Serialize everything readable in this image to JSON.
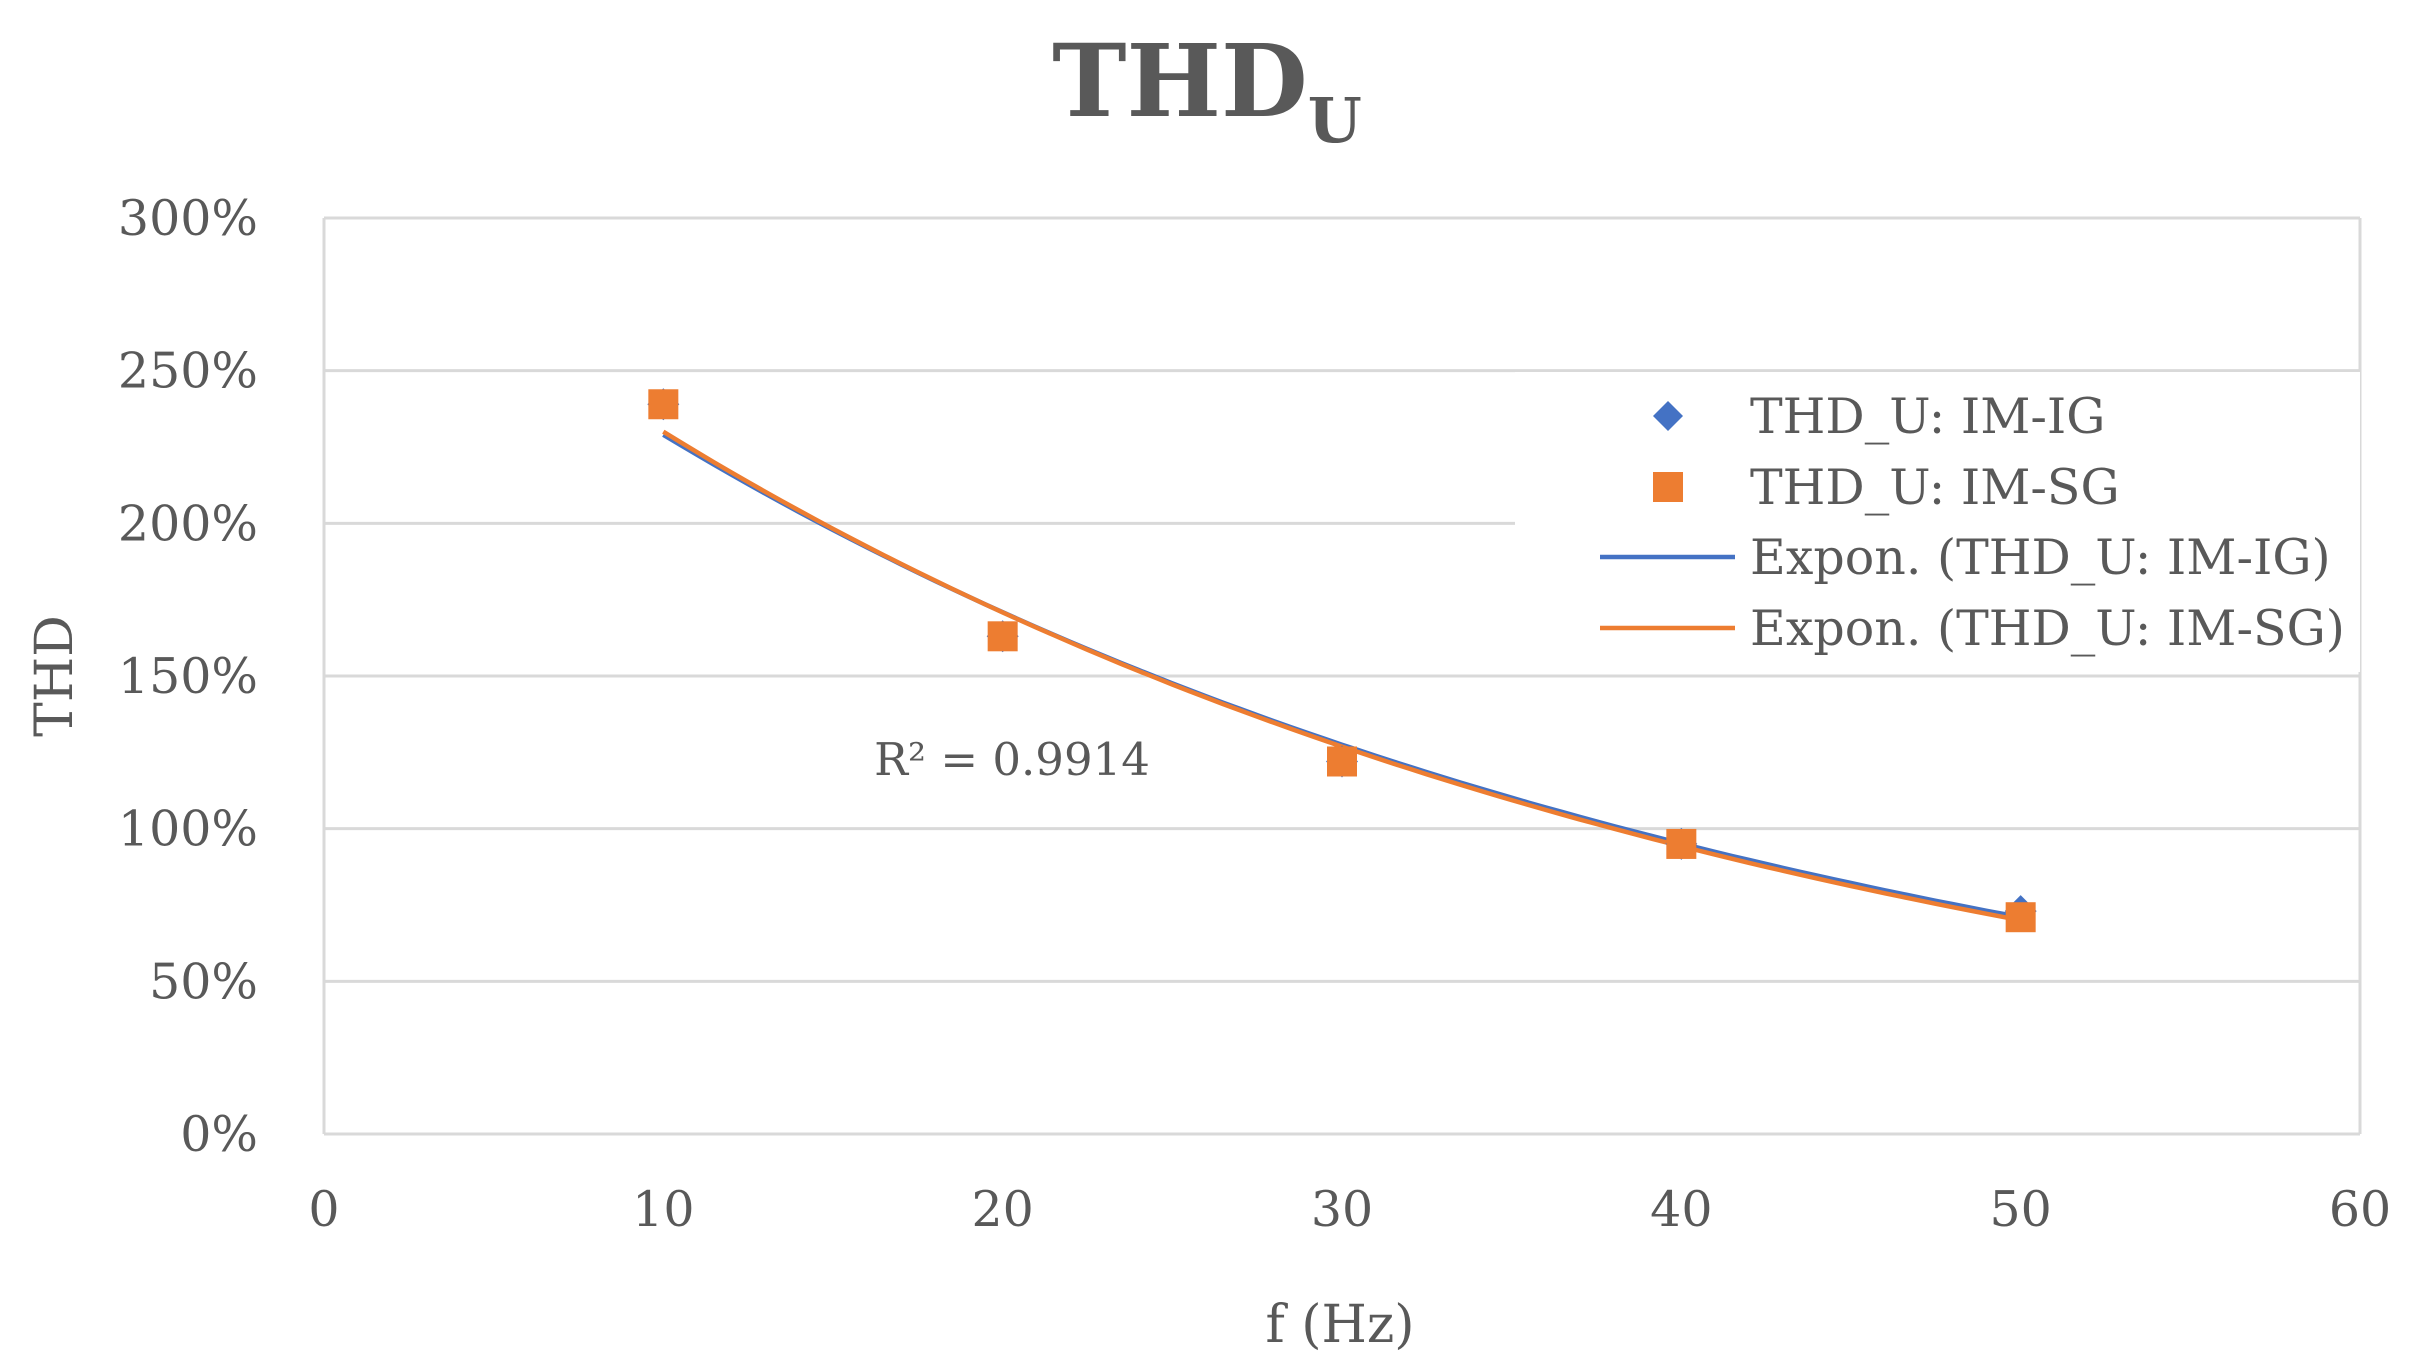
{
  "chart_data": {
    "type": "scatter",
    "title": "THD",
    "title_subscript": "U",
    "xlabel": "f (Hz)",
    "ylabel": "THD",
    "xlim": [
      0,
      60
    ],
    "ylim": [
      0,
      3
    ],
    "x_ticks": [
      0,
      10,
      20,
      30,
      40,
      50,
      60
    ],
    "x_tick_labels": [
      "0",
      "10",
      "20",
      "30",
      "40",
      "50",
      "60"
    ],
    "y_ticks": [
      0,
      0.5,
      1.0,
      1.5,
      2.0,
      2.5,
      3.0
    ],
    "y_tick_labels": [
      "0%",
      "50%",
      "100%",
      "150%",
      "200%",
      "250%",
      "300%"
    ],
    "grid": "horizontal",
    "legend_position": "right",
    "series": [
      {
        "name": "THD_U: IM-IG",
        "marker": "diamond",
        "color": "#4472C4",
        "x": [
          10,
          20,
          30,
          40,
          50
        ],
        "y": [
          2.39,
          1.63,
          1.22,
          0.95,
          0.73
        ]
      },
      {
        "name": "THD_U: IM-SG",
        "marker": "square",
        "color": "#ED7D31",
        "x": [
          10,
          20,
          30,
          40,
          50
        ],
        "y": [
          2.39,
          1.63,
          1.22,
          0.95,
          0.71
        ]
      }
    ],
    "trendlines": [
      {
        "name": "Expon. (THD_U: IM-IG)",
        "type": "exponential",
        "color": "#4472C4",
        "x_range": [
          10,
          50
        ],
        "y_start": 2.29,
        "y_end": 0.71
      },
      {
        "name": "Expon. (THD_U: IM-SG)",
        "type": "exponential",
        "color": "#ED7D31",
        "x_range": [
          10,
          50
        ],
        "y_start": 2.3,
        "y_end": 0.7
      }
    ],
    "annotations": [
      {
        "text": "R² = 0.9914"
      }
    ]
  }
}
